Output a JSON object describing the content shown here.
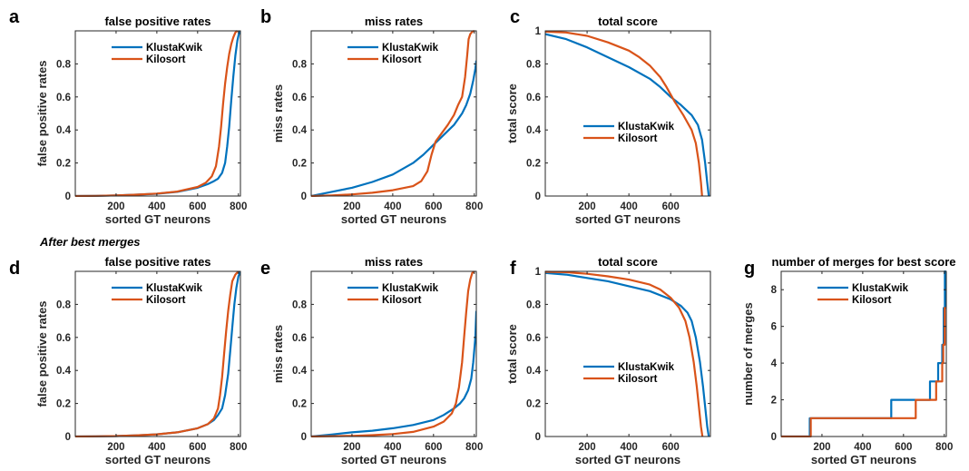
{
  "section_label": "After best merges",
  "colors": {
    "klustakwik": "#0072BD",
    "kilosort": "#D95319"
  },
  "chart_data": [
    {
      "letter": "a",
      "type": "line",
      "title": "false positive rates",
      "xlabel": "sorted GT neurons",
      "ylabel": "false positive rates",
      "xlim": [
        0,
        810
      ],
      "ylim": [
        0,
        1
      ],
      "xticks": [
        200,
        400,
        600,
        800
      ],
      "yticks": [
        0,
        0.2,
        0.4,
        0.6,
        0.8
      ],
      "legend": "top-center",
      "series": [
        {
          "name": "KlustaKwik",
          "color": "#0072BD",
          "x": [
            0,
            100,
            200,
            300,
            400,
            500,
            600,
            650,
            680,
            700,
            720,
            735,
            745,
            755,
            765,
            775,
            785,
            795,
            802,
            810
          ],
          "y": [
            0,
            0.001,
            0.004,
            0.008,
            0.014,
            0.025,
            0.05,
            0.072,
            0.09,
            0.105,
            0.14,
            0.2,
            0.3,
            0.42,
            0.58,
            0.72,
            0.85,
            0.94,
            0.98,
            1.0
          ]
        },
        {
          "name": "Kilosort",
          "color": "#D95319",
          "x": [
            0,
            100,
            200,
            300,
            400,
            500,
            600,
            640,
            670,
            690,
            705,
            715,
            725,
            735,
            745,
            755,
            765,
            775,
            785,
            795
          ],
          "y": [
            0,
            0.001,
            0.004,
            0.008,
            0.015,
            0.027,
            0.055,
            0.08,
            0.12,
            0.18,
            0.3,
            0.42,
            0.56,
            0.68,
            0.78,
            0.86,
            0.92,
            0.96,
            0.99,
            1.0
          ]
        }
      ]
    },
    {
      "letter": "b",
      "type": "line",
      "title": "miss rates",
      "xlabel": "sorted GT neurons",
      "ylabel": "miss rates",
      "xlim": [
        0,
        810
      ],
      "ylim": [
        0,
        1
      ],
      "xticks": [
        200,
        400,
        600,
        800
      ],
      "yticks": [
        0,
        0.2,
        0.4,
        0.6,
        0.8
      ],
      "legend": "top-center",
      "series": [
        {
          "name": "KlustaKwik",
          "color": "#0072BD",
          "x": [
            0,
            100,
            200,
            300,
            400,
            500,
            550,
            600,
            650,
            700,
            740,
            760,
            780,
            795,
            805,
            810
          ],
          "y": [
            0,
            0.025,
            0.05,
            0.085,
            0.13,
            0.2,
            0.25,
            0.31,
            0.37,
            0.43,
            0.5,
            0.55,
            0.62,
            0.7,
            0.77,
            0.82
          ]
        },
        {
          "name": "Kilosort",
          "color": "#D95319",
          "x": [
            0,
            100,
            200,
            300,
            400,
            500,
            540,
            570,
            590,
            610,
            640,
            670,
            700,
            720,
            740,
            755,
            765,
            772,
            780,
            790,
            800
          ],
          "y": [
            0,
            0.004,
            0.01,
            0.02,
            0.035,
            0.06,
            0.09,
            0.15,
            0.25,
            0.33,
            0.38,
            0.43,
            0.49,
            0.55,
            0.6,
            0.72,
            0.85,
            0.95,
            0.98,
            0.995,
            1.0
          ]
        }
      ]
    },
    {
      "letter": "c",
      "type": "line",
      "title": "total score",
      "xlabel": "sorted GT neurons",
      "ylabel": "total score",
      "xlim": [
        0,
        790
      ],
      "ylim": [
        0,
        1
      ],
      "xticks": [
        200,
        400,
        600
      ],
      "yticks": [
        0,
        0.2,
        0.4,
        0.6,
        0.8,
        1
      ],
      "legend": "center",
      "series": [
        {
          "name": "KlustaKwik",
          "color": "#0072BD",
          "x": [
            0,
            100,
            200,
            300,
            400,
            500,
            550,
            600,
            650,
            700,
            730,
            750,
            765,
            775,
            782
          ],
          "y": [
            0.98,
            0.95,
            0.9,
            0.84,
            0.78,
            0.71,
            0.66,
            0.6,
            0.55,
            0.49,
            0.43,
            0.34,
            0.2,
            0.08,
            0
          ]
        },
        {
          "name": "Kilosort",
          "color": "#D95319",
          "x": [
            0,
            100,
            200,
            300,
            400,
            450,
            500,
            550,
            580,
            620,
            660,
            700,
            720,
            735,
            745,
            750
          ],
          "y": [
            0.995,
            0.99,
            0.97,
            0.93,
            0.88,
            0.84,
            0.79,
            0.72,
            0.66,
            0.57,
            0.49,
            0.4,
            0.32,
            0.2,
            0.08,
            0
          ]
        }
      ]
    },
    {
      "letter": "d",
      "type": "line",
      "title": "false positive rates",
      "xlabel": "sorted GT neurons",
      "ylabel": "false positive rates",
      "xlim": [
        0,
        810
      ],
      "ylim": [
        0,
        1
      ],
      "xticks": [
        200,
        400,
        600,
        800
      ],
      "yticks": [
        0,
        0.2,
        0.4,
        0.6,
        0.8
      ],
      "legend": "top-center",
      "series": [
        {
          "name": "KlustaKwik",
          "color": "#0072BD",
          "x": [
            0,
            100,
            200,
            300,
            400,
            500,
            600,
            650,
            680,
            700,
            720,
            735,
            750,
            760,
            770,
            780,
            790,
            800,
            810
          ],
          "y": [
            0,
            0.001,
            0.003,
            0.007,
            0.013,
            0.025,
            0.05,
            0.075,
            0.1,
            0.13,
            0.17,
            0.25,
            0.38,
            0.52,
            0.66,
            0.8,
            0.9,
            0.97,
            1.0
          ]
        },
        {
          "name": "Kilosort",
          "color": "#D95319",
          "x": [
            0,
            100,
            200,
            300,
            400,
            500,
            600,
            650,
            680,
            700,
            710,
            720,
            730,
            740,
            750,
            760,
            770,
            785,
            800
          ],
          "y": [
            0,
            0.001,
            0.003,
            0.007,
            0.013,
            0.025,
            0.05,
            0.075,
            0.11,
            0.17,
            0.25,
            0.36,
            0.5,
            0.64,
            0.76,
            0.86,
            0.94,
            0.98,
            1.0
          ]
        }
      ]
    },
    {
      "letter": "e",
      "type": "line",
      "title": "miss rates",
      "xlabel": "sorted GT neurons",
      "ylabel": "miss rates",
      "xlim": [
        0,
        810
      ],
      "ylim": [
        0,
        1
      ],
      "xticks": [
        200,
        400,
        600,
        800
      ],
      "yticks": [
        0,
        0.2,
        0.4,
        0.6,
        0.8
      ],
      "legend": "top-center",
      "series": [
        {
          "name": "KlustaKwik",
          "color": "#0072BD",
          "x": [
            0,
            100,
            200,
            300,
            400,
            500,
            600,
            650,
            700,
            730,
            750,
            770,
            785,
            795,
            805,
            810
          ],
          "y": [
            0,
            0.012,
            0.025,
            0.035,
            0.05,
            0.07,
            0.1,
            0.13,
            0.17,
            0.2,
            0.23,
            0.28,
            0.35,
            0.45,
            0.6,
            0.76
          ]
        },
        {
          "name": "Kilosort",
          "color": "#D95319",
          "x": [
            0,
            100,
            200,
            300,
            400,
            500,
            600,
            650,
            690,
            710,
            725,
            740,
            750,
            760,
            770,
            780,
            790,
            800
          ],
          "y": [
            0,
            0.002,
            0.004,
            0.008,
            0.015,
            0.028,
            0.06,
            0.09,
            0.14,
            0.2,
            0.3,
            0.45,
            0.6,
            0.75,
            0.88,
            0.95,
            0.99,
            1.0
          ]
        }
      ]
    },
    {
      "letter": "f",
      "type": "line",
      "title": "total score",
      "xlabel": "sorted GT neurons",
      "ylabel": "total score",
      "xlim": [
        0,
        790
      ],
      "ylim": [
        0,
        1
      ],
      "xticks": [
        200,
        400,
        600
      ],
      "yticks": [
        0,
        0.2,
        0.4,
        0.6,
        0.8,
        1
      ],
      "legend": "center",
      "series": [
        {
          "name": "KlustaKwik",
          "color": "#0072BD",
          "x": [
            0,
            100,
            200,
            300,
            400,
            500,
            600,
            650,
            680,
            700,
            720,
            740,
            755,
            765,
            775,
            782
          ],
          "y": [
            0.99,
            0.98,
            0.96,
            0.94,
            0.91,
            0.88,
            0.83,
            0.79,
            0.75,
            0.7,
            0.6,
            0.45,
            0.3,
            0.18,
            0.06,
            0
          ]
        },
        {
          "name": "Kilosort",
          "color": "#D95319",
          "x": [
            0,
            100,
            200,
            300,
            400,
            500,
            550,
            600,
            640,
            670,
            690,
            710,
            725,
            735,
            745,
            752
          ],
          "y": [
            0.997,
            0.995,
            0.985,
            0.97,
            0.95,
            0.92,
            0.89,
            0.84,
            0.78,
            0.7,
            0.6,
            0.45,
            0.3,
            0.18,
            0.06,
            0
          ]
        }
      ]
    },
    {
      "letter": "g",
      "type": "line",
      "title": "number of merges for best score",
      "xlabel": "sorted GT neurons",
      "ylabel": "number of merges",
      "xlim": [
        0,
        810
      ],
      "ylim": [
        0,
        9
      ],
      "xticks": [
        200,
        400,
        600,
        800
      ],
      "yticks": [
        0,
        2,
        4,
        6,
        8
      ],
      "legend": "top-center",
      "series": [
        {
          "name": "KlustaKwik",
          "color": "#0072BD",
          "x": [
            0,
            140,
            140,
            540,
            540,
            730,
            730,
            770,
            770,
            790,
            790,
            797,
            797,
            803,
            803,
            808
          ],
          "y": [
            0,
            0,
            1,
            1,
            2,
            2,
            3,
            3,
            4,
            4,
            5,
            5,
            7,
            7,
            9,
            9
          ]
        },
        {
          "name": "Kilosort",
          "color": "#D95319",
          "x": [
            0,
            145,
            145,
            660,
            660,
            760,
            760,
            790,
            790,
            795,
            795,
            802,
            802,
            808
          ],
          "y": [
            0,
            0,
            1,
            1,
            2,
            2,
            3,
            3,
            4,
            4,
            5,
            5,
            7,
            7
          ]
        }
      ]
    }
  ]
}
